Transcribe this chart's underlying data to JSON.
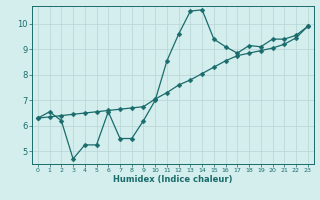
{
  "xlabel": "Humidex (Indice chaleur)",
  "bg_color": "#d4eeee",
  "grid_color": "#b8d4d4",
  "line_color": "#1a6b6b",
  "marker": "D",
  "markersize": 2.5,
  "linewidth": 0.9,
  "xlim": [
    -0.5,
    23.5
  ],
  "ylim": [
    4.5,
    10.7
  ],
  "yticks": [
    5,
    6,
    7,
    8,
    9,
    10
  ],
  "xticks": [
    0,
    1,
    2,
    3,
    4,
    5,
    6,
    7,
    8,
    9,
    10,
    11,
    12,
    13,
    14,
    15,
    16,
    17,
    18,
    19,
    20,
    21,
    22,
    23
  ],
  "line1_x": [
    0,
    1,
    2,
    3,
    4,
    5,
    6,
    7,
    8,
    9,
    10,
    11,
    12,
    13,
    14,
    15,
    16,
    17,
    18,
    19,
    20,
    21,
    22,
    23
  ],
  "line1_y": [
    6.3,
    6.55,
    6.2,
    4.7,
    5.25,
    5.25,
    6.55,
    5.5,
    5.5,
    6.2,
    7.0,
    8.55,
    9.6,
    10.5,
    10.55,
    9.4,
    9.1,
    8.85,
    9.15,
    9.1,
    9.4,
    9.4,
    9.55,
    9.9
  ],
  "line2_x": [
    0,
    1,
    2,
    3,
    4,
    5,
    6,
    7,
    8,
    9,
    10,
    11,
    12,
    13,
    14,
    15,
    16,
    17,
    18,
    19,
    20,
    21,
    22,
    23
  ],
  "line2_y": [
    6.3,
    6.35,
    6.4,
    6.45,
    6.5,
    6.55,
    6.6,
    6.65,
    6.7,
    6.75,
    7.05,
    7.3,
    7.6,
    7.8,
    8.05,
    8.3,
    8.55,
    8.75,
    8.85,
    8.95,
    9.05,
    9.2,
    9.45,
    9.9
  ]
}
